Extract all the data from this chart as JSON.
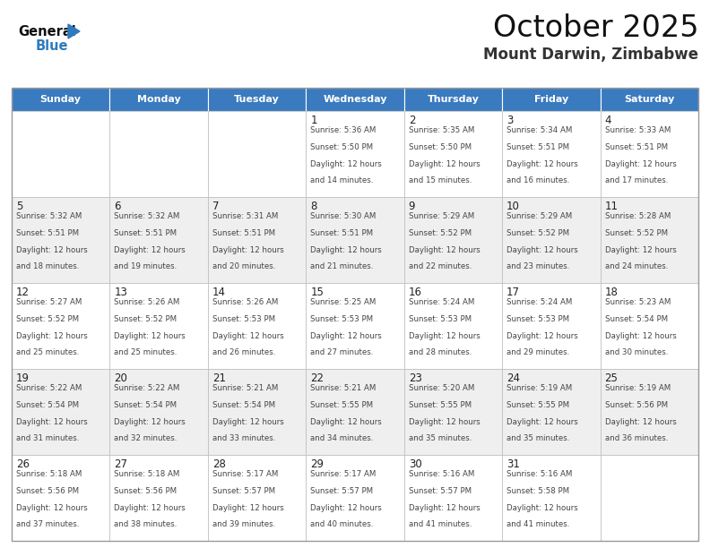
{
  "title": "October 2025",
  "subtitle": "Mount Darwin, Zimbabwe",
  "header_bg": "#3a7abf",
  "header_text_color": "#ffffff",
  "cell_bg_white": "#ffffff",
  "cell_bg_light": "#efefef",
  "text_color": "#444444",
  "grid_color": "#bbbbbb",
  "days_of_week": [
    "Sunday",
    "Monday",
    "Tuesday",
    "Wednesday",
    "Thursday",
    "Friday",
    "Saturday"
  ],
  "logo_general_color": "#111111",
  "logo_blue_color": "#2e7abf",
  "logo_triangle_color": "#2e7abf",
  "calendar_data": [
    [
      {
        "day": "",
        "sunrise": "",
        "sunset": "",
        "daylight": ""
      },
      {
        "day": "",
        "sunrise": "",
        "sunset": "",
        "daylight": ""
      },
      {
        "day": "",
        "sunrise": "",
        "sunset": "",
        "daylight": ""
      },
      {
        "day": "1",
        "sunrise": "5:36 AM",
        "sunset": "5:50 PM",
        "daylight": "12 hours and 14 minutes."
      },
      {
        "day": "2",
        "sunrise": "5:35 AM",
        "sunset": "5:50 PM",
        "daylight": "12 hours and 15 minutes."
      },
      {
        "day": "3",
        "sunrise": "5:34 AM",
        "sunset": "5:51 PM",
        "daylight": "12 hours and 16 minutes."
      },
      {
        "day": "4",
        "sunrise": "5:33 AM",
        "sunset": "5:51 PM",
        "daylight": "12 hours and 17 minutes."
      }
    ],
    [
      {
        "day": "5",
        "sunrise": "5:32 AM",
        "sunset": "5:51 PM",
        "daylight": "12 hours and 18 minutes."
      },
      {
        "day": "6",
        "sunrise": "5:32 AM",
        "sunset": "5:51 PM",
        "daylight": "12 hours and 19 minutes."
      },
      {
        "day": "7",
        "sunrise": "5:31 AM",
        "sunset": "5:51 PM",
        "daylight": "12 hours and 20 minutes."
      },
      {
        "day": "8",
        "sunrise": "5:30 AM",
        "sunset": "5:51 PM",
        "daylight": "12 hours and 21 minutes."
      },
      {
        "day": "9",
        "sunrise": "5:29 AM",
        "sunset": "5:52 PM",
        "daylight": "12 hours and 22 minutes."
      },
      {
        "day": "10",
        "sunrise": "5:29 AM",
        "sunset": "5:52 PM",
        "daylight": "12 hours and 23 minutes."
      },
      {
        "day": "11",
        "sunrise": "5:28 AM",
        "sunset": "5:52 PM",
        "daylight": "12 hours and 24 minutes."
      }
    ],
    [
      {
        "day": "12",
        "sunrise": "5:27 AM",
        "sunset": "5:52 PM",
        "daylight": "12 hours and 25 minutes."
      },
      {
        "day": "13",
        "sunrise": "5:26 AM",
        "sunset": "5:52 PM",
        "daylight": "12 hours and 25 minutes."
      },
      {
        "day": "14",
        "sunrise": "5:26 AM",
        "sunset": "5:53 PM",
        "daylight": "12 hours and 26 minutes."
      },
      {
        "day": "15",
        "sunrise": "5:25 AM",
        "sunset": "5:53 PM",
        "daylight": "12 hours and 27 minutes."
      },
      {
        "day": "16",
        "sunrise": "5:24 AM",
        "sunset": "5:53 PM",
        "daylight": "12 hours and 28 minutes."
      },
      {
        "day": "17",
        "sunrise": "5:24 AM",
        "sunset": "5:53 PM",
        "daylight": "12 hours and 29 minutes."
      },
      {
        "day": "18",
        "sunrise": "5:23 AM",
        "sunset": "5:54 PM",
        "daylight": "12 hours and 30 minutes."
      }
    ],
    [
      {
        "day": "19",
        "sunrise": "5:22 AM",
        "sunset": "5:54 PM",
        "daylight": "12 hours and 31 minutes."
      },
      {
        "day": "20",
        "sunrise": "5:22 AM",
        "sunset": "5:54 PM",
        "daylight": "12 hours and 32 minutes."
      },
      {
        "day": "21",
        "sunrise": "5:21 AM",
        "sunset": "5:54 PM",
        "daylight": "12 hours and 33 minutes."
      },
      {
        "day": "22",
        "sunrise": "5:21 AM",
        "sunset": "5:55 PM",
        "daylight": "12 hours and 34 minutes."
      },
      {
        "day": "23",
        "sunrise": "5:20 AM",
        "sunset": "5:55 PM",
        "daylight": "12 hours and 35 minutes."
      },
      {
        "day": "24",
        "sunrise": "5:19 AM",
        "sunset": "5:55 PM",
        "daylight": "12 hours and 35 minutes."
      },
      {
        "day": "25",
        "sunrise": "5:19 AM",
        "sunset": "5:56 PM",
        "daylight": "12 hours and 36 minutes."
      }
    ],
    [
      {
        "day": "26",
        "sunrise": "5:18 AM",
        "sunset": "5:56 PM",
        "daylight": "12 hours and 37 minutes."
      },
      {
        "day": "27",
        "sunrise": "5:18 AM",
        "sunset": "5:56 PM",
        "daylight": "12 hours and 38 minutes."
      },
      {
        "day": "28",
        "sunrise": "5:17 AM",
        "sunset": "5:57 PM",
        "daylight": "12 hours and 39 minutes."
      },
      {
        "day": "29",
        "sunrise": "5:17 AM",
        "sunset": "5:57 PM",
        "daylight": "12 hours and 40 minutes."
      },
      {
        "day": "30",
        "sunrise": "5:16 AM",
        "sunset": "5:57 PM",
        "daylight": "12 hours and 41 minutes."
      },
      {
        "day": "31",
        "sunrise": "5:16 AM",
        "sunset": "5:58 PM",
        "daylight": "12 hours and 41 minutes."
      },
      {
        "day": "",
        "sunrise": "",
        "sunset": "",
        "daylight": ""
      }
    ]
  ]
}
